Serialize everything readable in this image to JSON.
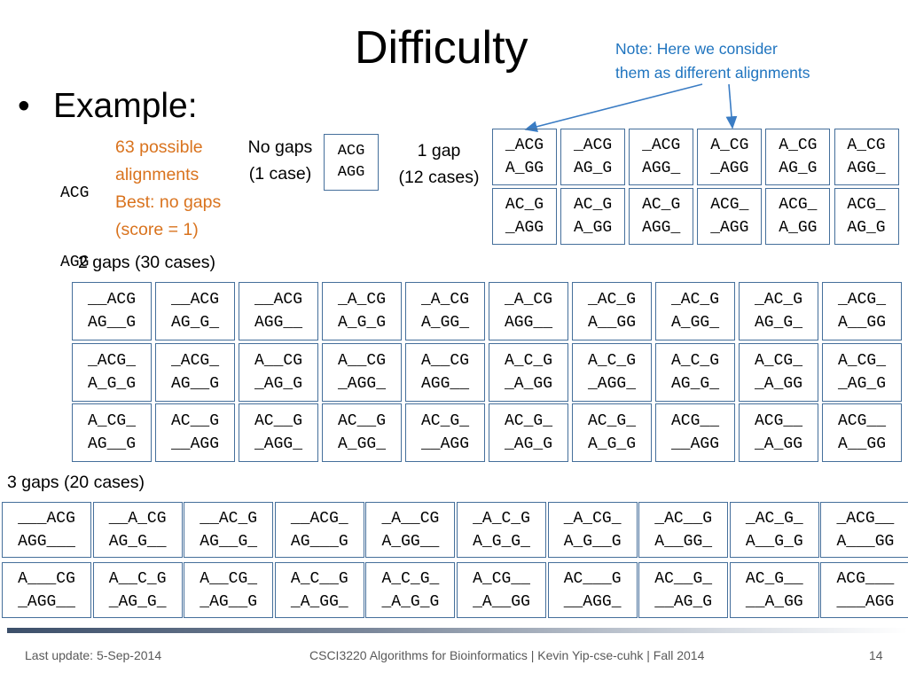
{
  "title": "Difficulty",
  "note": "Note: Here we consider\nthem as different alignments",
  "bullet": "Example:",
  "example_seqs": [
    "ACG",
    "AGG"
  ],
  "info_lines": [
    "63 possible",
    "alignments",
    "Best: no gaps",
    "(score = 1)"
  ],
  "no_gaps": {
    "label1": "No gaps",
    "label2": "(1 case)",
    "alignment": [
      "ACG",
      "AGG"
    ]
  },
  "one_gap": {
    "label1": "1 gap",
    "label2": "(12 cases)",
    "rows": [
      [
        [
          "_ACG",
          "A_GG"
        ],
        [
          "_ACG",
          "AG_G"
        ],
        [
          "_ACG",
          "AGG_"
        ],
        [
          "A_CG",
          "_AGG"
        ],
        [
          "A_CG",
          "AG_G"
        ],
        [
          "A_CG",
          "AGG_"
        ]
      ],
      [
        [
          "AC_G",
          "_AGG"
        ],
        [
          "AC_G",
          "A_GG"
        ],
        [
          "AC_G",
          "AGG_"
        ],
        [
          "ACG_",
          "_AGG"
        ],
        [
          "ACG_",
          "A_GG"
        ],
        [
          "ACG_",
          "AG_G"
        ]
      ]
    ]
  },
  "two_gaps": {
    "label": "2 gaps (30 cases)",
    "rows": [
      [
        [
          "__ACG",
          "AG__G"
        ],
        [
          "__ACG",
          "AG_G_"
        ],
        [
          "__ACG",
          "AGG__"
        ],
        [
          "_A_CG",
          "A_G_G"
        ],
        [
          "_A_CG",
          "A_GG_"
        ],
        [
          "_A_CG",
          "AGG__"
        ],
        [
          "_AC_G",
          "A__GG"
        ],
        [
          "_AC_G",
          "A_GG_"
        ],
        [
          "_AC_G",
          "AG_G_"
        ],
        [
          "_ACG_",
          "A__GG"
        ]
      ],
      [
        [
          "_ACG_",
          "A_G_G"
        ],
        [
          "_ACG_",
          "AG__G"
        ],
        [
          "A__CG",
          "_AG_G"
        ],
        [
          "A__CG",
          "_AGG_"
        ],
        [
          "A__CG",
          "AGG__"
        ],
        [
          "A_C_G",
          "_A_GG"
        ],
        [
          "A_C_G",
          "_AGG_"
        ],
        [
          "A_C_G",
          "AG_G_"
        ],
        [
          "A_CG_",
          "_A_GG"
        ],
        [
          "A_CG_",
          "_AG_G"
        ]
      ],
      [
        [
          "A_CG_",
          "AG__G"
        ],
        [
          "AC__G",
          "__AGG"
        ],
        [
          "AC__G",
          "_AGG_"
        ],
        [
          "AC__G",
          "A_GG_"
        ],
        [
          "AC_G_",
          "__AGG"
        ],
        [
          "AC_G_",
          "_AG_G"
        ],
        [
          "AC_G_",
          "A_G_G"
        ],
        [
          "ACG__",
          "__AGG"
        ],
        [
          "ACG__",
          "_A_GG"
        ],
        [
          "ACG__",
          "A__GG"
        ]
      ]
    ]
  },
  "three_gaps": {
    "label": "3 gaps (20 cases)",
    "rows": [
      [
        [
          "___ACG",
          "AGG___"
        ],
        [
          "__A_CG",
          "AG_G__"
        ],
        [
          "__AC_G",
          "AG__G_"
        ],
        [
          "__ACG_",
          "AG___G"
        ],
        [
          "_A__CG",
          "A_GG__"
        ],
        [
          "_A_C_G",
          "A_G_G_"
        ],
        [
          "_A_CG_",
          "A_G__G"
        ],
        [
          "_AC__G",
          "A__GG_"
        ],
        [
          "_AC_G_",
          "A__G_G"
        ],
        [
          "_ACG__",
          "A___GG"
        ]
      ],
      [
        [
          "A___CG",
          "_AGG__"
        ],
        [
          "A__C_G",
          "_AG_G_"
        ],
        [
          "A__CG_",
          "_AG__G"
        ],
        [
          "A_C__G",
          "_A_GG_"
        ],
        [
          "A_C_G_",
          "_A_G_G"
        ],
        [
          "A_CG__",
          "_A__GG"
        ],
        [
          "AC___G",
          "__AGG_"
        ],
        [
          "AC__G_",
          "__AG_G"
        ],
        [
          "AC_G__",
          "__A_GG"
        ],
        [
          "ACG___",
          "___AGG"
        ]
      ]
    ]
  },
  "footer": {
    "left": "Last update: 5-Sep-2014",
    "center": "CSCI3220 Algorithms for Bioinformatics |  Kevin Yip-cse-cuhk | Fall 2014",
    "page": "14"
  },
  "colors": {
    "note": "#1f74bf",
    "info": "#d9731e",
    "box_border": "#456f9b"
  }
}
